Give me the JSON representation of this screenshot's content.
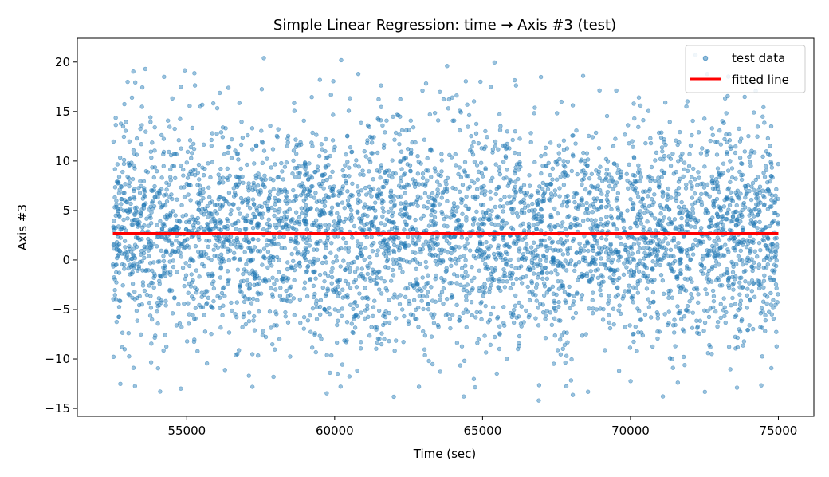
{
  "chart_data": {
    "type": "scatter",
    "title": "Simple Linear Regression: time → Axis #3 (test)",
    "xlabel": "Time (sec)",
    "ylabel": "Axis #3",
    "xlim": [
      51300,
      76200
    ],
    "ylim": [
      -15.8,
      22.4
    ],
    "x_ticks": [
      55000,
      60000,
      65000,
      70000,
      75000
    ],
    "x_tick_labels": [
      "55000",
      "60000",
      "65000",
      "70000",
      "75000"
    ],
    "y_ticks": [
      -15,
      -10,
      -5,
      0,
      5,
      10,
      15,
      20
    ],
    "y_tick_labels": [
      "−15",
      "−10",
      "−5",
      "0",
      "5",
      "10",
      "15",
      "20"
    ],
    "grid": false,
    "legend_position": "top-right",
    "series": [
      {
        "name": "test data",
        "kind": "scatter",
        "color": "#1f77b4",
        "x_range": [
          52500,
          75000
        ],
        "y_mean": 2.7,
        "y_sd": 5.5,
        "point_count": 4500,
        "sample_points": [
          [
            53600,
            19.3
          ],
          [
            63800,
            19.6
          ],
          [
            60800,
            18.8
          ],
          [
            59500,
            18.2
          ],
          [
            53000,
            18.0
          ],
          [
            54800,
            17.5
          ],
          [
            72200,
            20.7
          ],
          [
            68400,
            18.6
          ],
          [
            54100,
            -13.3
          ],
          [
            54800,
            -13.0
          ],
          [
            60200,
            -12.8
          ],
          [
            66900,
            -14.2
          ],
          [
            73600,
            -12.9
          ],
          [
            71600,
            -12.4
          ],
          [
            53200,
            -10.9
          ],
          [
            57100,
            -11.7
          ]
        ]
      },
      {
        "name": "fitted line",
        "kind": "line",
        "color": "#ff0000",
        "x": [
          52500,
          75000
        ],
        "y": [
          2.7,
          2.7
        ]
      }
    ]
  }
}
